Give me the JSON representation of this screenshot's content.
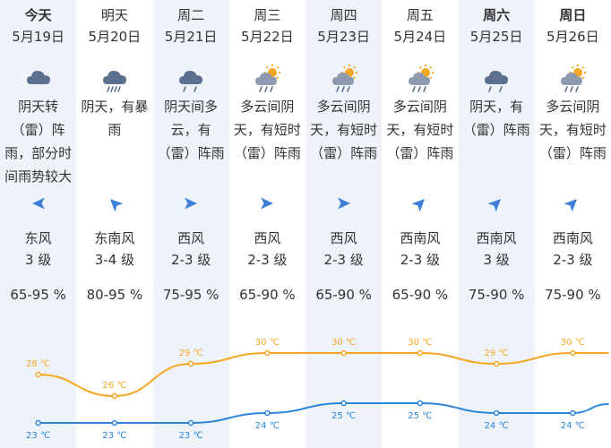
{
  "days": [
    {
      "day": "今天",
      "bold": true,
      "date": "5月19日",
      "icon": "overcast-rain-icon",
      "desc": "阴天转（雷）阵雨，部分时间雨势较大",
      "wind_icon": "wind-arrow-east-icon",
      "wind_angle": 180,
      "wind": "东风",
      "level": "3 级",
      "humidity": "65-95 %",
      "high": "28 ℃",
      "low": "23 ℃",
      "high_val": 28,
      "low_val": 23
    },
    {
      "day": "明天",
      "bold": false,
      "date": "5月20日",
      "icon": "heavy-rain-icon",
      "desc": "阴天，有暴雨",
      "wind_icon": "wind-arrow-southeast-icon",
      "wind_angle": 225,
      "wind": "东南风",
      "level": "3-4 级",
      "humidity": "80-95 %",
      "high": "26 ℃",
      "low": "23 ℃",
      "high_val": 26,
      "low_val": 23
    },
    {
      "day": "周二",
      "bold": false,
      "date": "5月21日",
      "icon": "rain-icon",
      "desc": "阴天间多云，有（雷）阵雨",
      "wind_icon": "wind-arrow-west-icon",
      "wind_angle": 0,
      "wind": "西风",
      "level": "2-3 级",
      "humidity": "75-95 %",
      "high": "29 ℃",
      "low": "23 ℃",
      "high_val": 29,
      "low_val": 23
    },
    {
      "day": "周三",
      "bold": false,
      "date": "5月22日",
      "icon": "sun-cloud-rain-icon",
      "desc": "多云间阴天，有短时（雷）阵雨",
      "wind_icon": "wind-arrow-west-icon",
      "wind_angle": 0,
      "wind": "西风",
      "level": "2-3 级",
      "humidity": "65-90 %",
      "high": "30 ℃",
      "low": "24 ℃",
      "high_val": 30,
      "low_val": 24
    },
    {
      "day": "周四",
      "bold": false,
      "date": "5月23日",
      "icon": "sun-cloud-rain-icon",
      "desc": "多云间阴天，有短时（雷）阵雨",
      "wind_icon": "wind-arrow-west-icon",
      "wind_angle": 0,
      "wind": "西风",
      "level": "2-3 级",
      "humidity": "65-90 %",
      "high": "30 ℃",
      "low": "25 ℃",
      "high_val": 30,
      "low_val": 25
    },
    {
      "day": "周五",
      "bold": false,
      "date": "5月24日",
      "icon": "sun-cloud-rain-icon",
      "desc": "多云间阴天，有短时（雷）阵雨",
      "wind_icon": "wind-arrow-southwest-icon",
      "wind_angle": -45,
      "wind": "西南风",
      "level": "2-3 级",
      "humidity": "65-90 %",
      "high": "30 ℃",
      "low": "25 ℃",
      "high_val": 30,
      "low_val": 25
    },
    {
      "day": "周六",
      "bold": true,
      "date": "5月25日",
      "icon": "rain-icon",
      "desc": "阴天，有（雷）阵雨",
      "wind_icon": "wind-arrow-southwest-icon",
      "wind_angle": -45,
      "wind": "西南风",
      "level": "3 级",
      "humidity": "75-90 %",
      "high": "29 ℃",
      "low": "24 ℃",
      "high_val": 29,
      "low_val": 24
    },
    {
      "day": "周日",
      "bold": true,
      "date": "5月26日",
      "icon": "sun-cloud-rain-icon",
      "desc": "多云间阴天，有短时（雷）阵雨",
      "wind_icon": "wind-arrow-southwest-icon",
      "wind_angle": -45,
      "wind": "西南风",
      "level": "2-3 级",
      "humidity": "75-90 %",
      "high": "30 ℃",
      "low": "24 ℃",
      "high_val": 30,
      "low_val": 24
    }
  ],
  "colors": {
    "high_line": "#f5a623",
    "low_line": "#2b86d9",
    "highlight": "#eef3fa",
    "icon_cloud": "#5b6f8f",
    "icon_sun": "#f5a623",
    "wind_arrow": "#3d7fd6"
  }
}
